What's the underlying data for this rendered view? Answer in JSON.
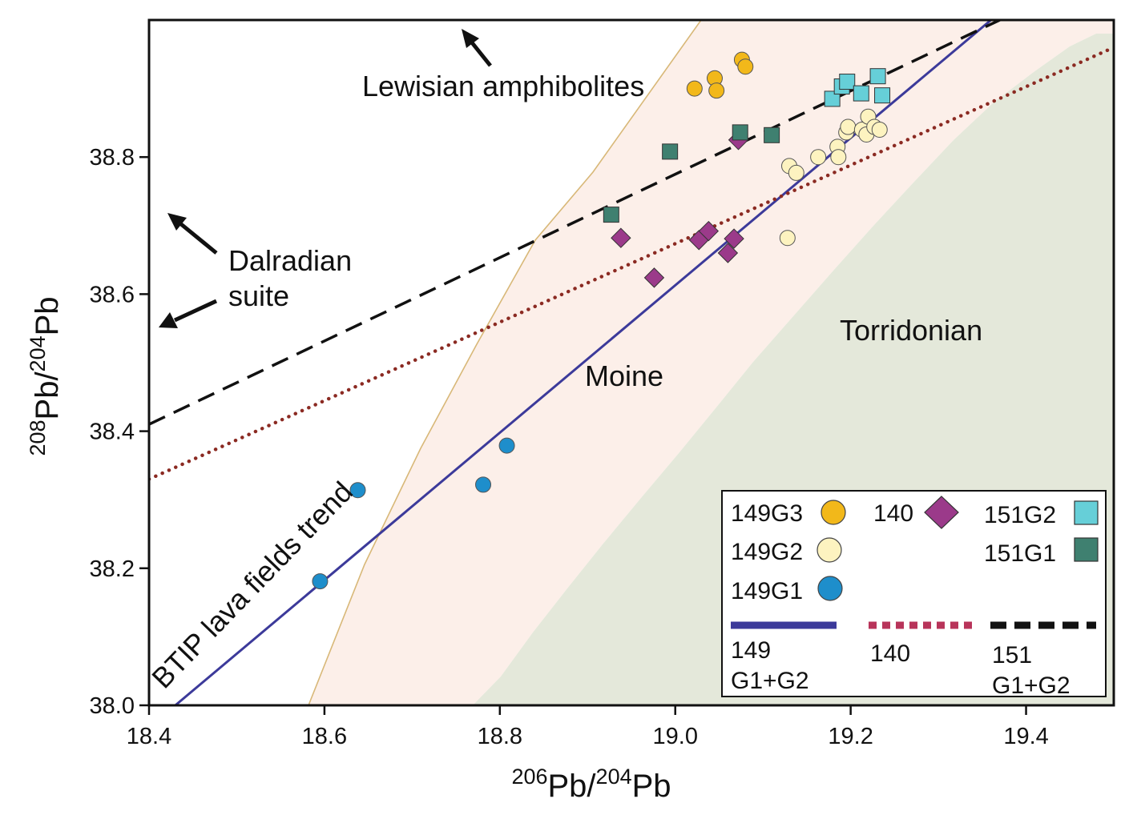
{
  "chart_data": {
    "type": "scatter",
    "xlabel": {
      "sup": "206",
      "base": "Pb/",
      "sup2": "204",
      "base2": "Pb"
    },
    "ylabel": {
      "sup": "208",
      "base": "Pb/",
      "sup2": "204",
      "base2": "Pb"
    },
    "xlim": [
      18.4,
      19.5
    ],
    "ylim": [
      38.0,
      39.0
    ],
    "xticks": [
      "18.4",
      "18.6",
      "18.8",
      "19.0",
      "19.2",
      "19.4"
    ],
    "xtick_values": [
      18.4,
      18.6,
      18.8,
      19.0,
      19.2,
      19.4
    ],
    "yticks": [
      "38.0",
      "38.2",
      "38.4",
      "38.6",
      "38.8"
    ],
    "ytick_values": [
      38.0,
      38.2,
      38.4,
      38.6,
      38.8
    ],
    "grid": false,
    "legend_placement": "bottom-right",
    "fields": [
      {
        "name": "Torridonian",
        "color": "#e4e8da"
      },
      {
        "name": "Moine",
        "color": "#fcefe9",
        "outline": "#d8b878"
      }
    ],
    "trend_lines": [
      {
        "key": "149",
        "legend_label_1": "149",
        "legend_label_2": "G1+G2",
        "color": "#3c3a9a",
        "style": "solid",
        "points": [
          [
            18.43,
            38.0
          ],
          [
            19.36,
            39.0
          ]
        ]
      },
      {
        "key": "140",
        "legend_label_1": "140",
        "legend_label_2": "",
        "color": "#8b2a22",
        "style": "dotted",
        "legend_color": "#b8345a",
        "points": [
          [
            18.4,
            38.33
          ],
          [
            19.5,
            38.96
          ]
        ]
      },
      {
        "key": "151",
        "legend_label_1": "151",
        "legend_label_2": "G1+G2",
        "color": "#111111",
        "style": "dashed",
        "points": [
          [
            18.4,
            38.41
          ],
          [
            19.37,
            39.0
          ]
        ]
      }
    ],
    "series": [
      {
        "name": "149G3",
        "marker": "circle",
        "color": "#f2b81a",
        "points": [
          [
            19.022,
            38.9
          ],
          [
            19.045,
            38.915
          ],
          [
            19.047,
            38.897
          ],
          [
            19.076,
            38.942
          ],
          [
            19.08,
            38.932
          ]
        ]
      },
      {
        "name": "149G2",
        "marker": "circle",
        "color": "#fdf3c0",
        "points": [
          [
            19.128,
            38.682
          ],
          [
            19.13,
            38.787
          ],
          [
            19.138,
            38.777
          ],
          [
            19.163,
            38.8
          ],
          [
            19.185,
            38.815
          ],
          [
            19.186,
            38.8
          ],
          [
            19.195,
            38.836
          ],
          [
            19.197,
            38.844
          ],
          [
            19.213,
            38.84
          ],
          [
            19.218,
            38.833
          ],
          [
            19.22,
            38.859
          ],
          [
            19.227,
            38.844
          ],
          [
            19.233,
            38.84
          ]
        ]
      },
      {
        "name": "149G1",
        "marker": "circle",
        "color": "#1e8ecb",
        "points": [
          [
            18.595,
            38.181
          ],
          [
            18.638,
            38.314
          ],
          [
            18.781,
            38.322
          ],
          [
            18.808,
            38.379
          ]
        ]
      },
      {
        "name": "140",
        "marker": "diamond",
        "color": "#9b3a8a",
        "points": [
          [
            18.938,
            38.682
          ],
          [
            18.976,
            38.624
          ],
          [
            19.027,
            38.679
          ],
          [
            19.038,
            38.692
          ],
          [
            19.06,
            38.66
          ],
          [
            19.067,
            38.681
          ],
          [
            19.072,
            38.825
          ]
        ]
      },
      {
        "name": "151G2",
        "marker": "square",
        "color": "#66cfd8",
        "points": [
          [
            19.179,
            38.885
          ],
          [
            19.19,
            38.903
          ],
          [
            19.196,
            38.91
          ],
          [
            19.212,
            38.893
          ],
          [
            19.231,
            38.918
          ],
          [
            19.236,
            38.89
          ]
        ]
      },
      {
        "name": "151G1",
        "marker": "square",
        "color": "#3f8070",
        "points": [
          [
            18.927,
            38.716
          ],
          [
            18.994,
            38.808
          ],
          [
            19.074,
            38.836
          ],
          [
            19.11,
            38.832
          ]
        ]
      }
    ],
    "annotations": [
      {
        "text": "Lewisian amphibolites",
        "name": "lewisian-amphibolites-label"
      },
      {
        "text": "Dalradian",
        "name": "dalradian-label-line1"
      },
      {
        "text": "suite",
        "name": "dalradian-label-line2"
      },
      {
        "text": "Torridonian",
        "name": "torridonian-label"
      },
      {
        "text": "Moine",
        "name": "moine-label"
      },
      {
        "text": "BTIP lava fields trend",
        "name": "btip-trend-label"
      }
    ]
  }
}
